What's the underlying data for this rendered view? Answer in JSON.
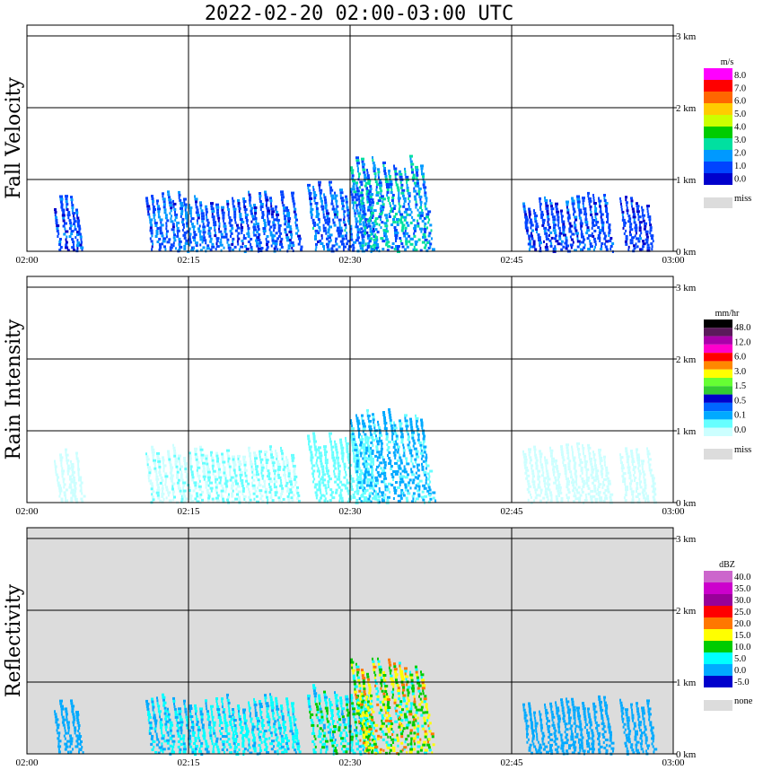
{
  "title": "2022-02-20   02:00-03:00 UTC",
  "time_ticks": [
    "02:00",
    "02:15",
    "02:30",
    "02:45",
    "03:00"
  ],
  "height_ticks": [
    "0 km",
    "1 km",
    "2 km",
    "3 km"
  ],
  "chart_data": [
    {
      "type": "heatmap",
      "ylabel": "Fall Velocity",
      "unit": "m/s",
      "x_range": [
        "02:00",
        "03:00"
      ],
      "y_range_km": [
        0,
        3.1
      ],
      "background": "#ffffff",
      "colorbar": {
        "labels": [
          "8.0",
          "7.0",
          "6.0",
          "5.0",
          "4.0",
          "3.0",
          "2.0",
          "1.0",
          "0.0"
        ],
        "colors": [
          "#ff00ff",
          "#ff0000",
          "#ff6600",
          "#ffcc00",
          "#ccff00",
          "#00cc00",
          "#00e0a0",
          "#0099ff",
          "#0044ff",
          "#0000cc"
        ],
        "missing_label": "miss",
        "missing_color": "#dcdcdc"
      },
      "echo_clusters": [
        {
          "start": "02:02.5",
          "end": "02:05",
          "top_km": 0.8,
          "value": 1.5
        },
        {
          "start": "02:11",
          "end": "02:17",
          "top_km": 0.85,
          "value": 1.8
        },
        {
          "start": "02:17",
          "end": "02:25",
          "top_km": 0.85,
          "value": 1.6
        },
        {
          "start": "02:26",
          "end": "02:32",
          "top_km": 1.0,
          "value": 1.9
        },
        {
          "start": "02:30",
          "end": "02:37",
          "top_km": 1.35,
          "value": 2.5
        },
        {
          "start": "02:46",
          "end": "02:50",
          "top_km": 0.8,
          "value": 1.4
        },
        {
          "start": "02:50",
          "end": "02:54",
          "top_km": 0.85,
          "value": 1.5
        },
        {
          "start": "02:55",
          "end": "02:58",
          "top_km": 0.8,
          "value": 1.3
        }
      ]
    },
    {
      "type": "heatmap",
      "ylabel": "Rain Intensity",
      "unit": "mm/hr",
      "x_range": [
        "02:00",
        "03:00"
      ],
      "y_range_km": [
        0,
        3.1
      ],
      "background": "#ffffff",
      "colorbar": {
        "labels": [
          "48.0",
          "12.0",
          "6.0",
          "3.0",
          "1.5",
          "0.5",
          "0.1",
          "0.0"
        ],
        "colors": [
          "#000000",
          "#5a1a5a",
          "#aa00aa",
          "#ff00cc",
          "#ff0000",
          "#ff8800",
          "#ffff00",
          "#66ff33",
          "#33cc33",
          "#0000cc",
          "#0066ff",
          "#00aaff",
          "#66ffff",
          "#ccffff"
        ],
        "missing_label": "miss",
        "missing_color": "#dcdcdc"
      },
      "echo_clusters": [
        {
          "start": "02:02.5",
          "end": "02:05",
          "top_km": 0.8,
          "value": 0.05
        },
        {
          "start": "02:11",
          "end": "02:17",
          "top_km": 0.85,
          "value": 0.08
        },
        {
          "start": "02:17",
          "end": "02:25",
          "top_km": 0.85,
          "value": 0.1
        },
        {
          "start": "02:26",
          "end": "02:32",
          "top_km": 1.0,
          "value": 0.2
        },
        {
          "start": "02:30",
          "end": "02:37",
          "top_km": 1.35,
          "value": 0.6
        },
        {
          "start": "02:46",
          "end": "02:50",
          "top_km": 0.8,
          "value": 0.05
        },
        {
          "start": "02:50",
          "end": "02:54",
          "top_km": 0.85,
          "value": 0.05
        },
        {
          "start": "02:55",
          "end": "02:58",
          "top_km": 0.8,
          "value": 0.04
        }
      ]
    },
    {
      "type": "heatmap",
      "ylabel": "Reflectivity",
      "unit": "dBZ",
      "x_range": [
        "02:00",
        "03:00"
      ],
      "y_range_km": [
        0,
        3.1
      ],
      "background": "#dcdcdc",
      "colorbar": {
        "labels": [
          "40.0",
          "35.0",
          "30.0",
          "25.0",
          "20.0",
          "15.0",
          "10.0",
          "5.0",
          "0.0",
          "-5.0"
        ],
        "colors": [
          "#cc66cc",
          "#cc00cc",
          "#990099",
          "#ff0000",
          "#ff7700",
          "#ffff00",
          "#00cc00",
          "#00ffff",
          "#00aaff",
          "#0000cc"
        ],
        "missing_label": "none",
        "missing_color": "#dcdcdc"
      },
      "echo_clusters": [
        {
          "start": "02:02.5",
          "end": "02:05",
          "top_km": 0.8,
          "value": 3
        },
        {
          "start": "02:11",
          "end": "02:17",
          "top_km": 0.85,
          "value": 5
        },
        {
          "start": "02:17",
          "end": "02:25",
          "top_km": 0.85,
          "value": 6
        },
        {
          "start": "02:26",
          "end": "02:32",
          "top_km": 1.0,
          "value": 8
        },
        {
          "start": "02:30",
          "end": "02:37",
          "top_km": 1.35,
          "value": 14
        },
        {
          "start": "02:46",
          "end": "02:50",
          "top_km": 0.8,
          "value": 3
        },
        {
          "start": "02:50",
          "end": "02:54",
          "top_km": 0.85,
          "value": 3
        },
        {
          "start": "02:55",
          "end": "02:58",
          "top_km": 0.8,
          "value": 2
        }
      ]
    }
  ]
}
